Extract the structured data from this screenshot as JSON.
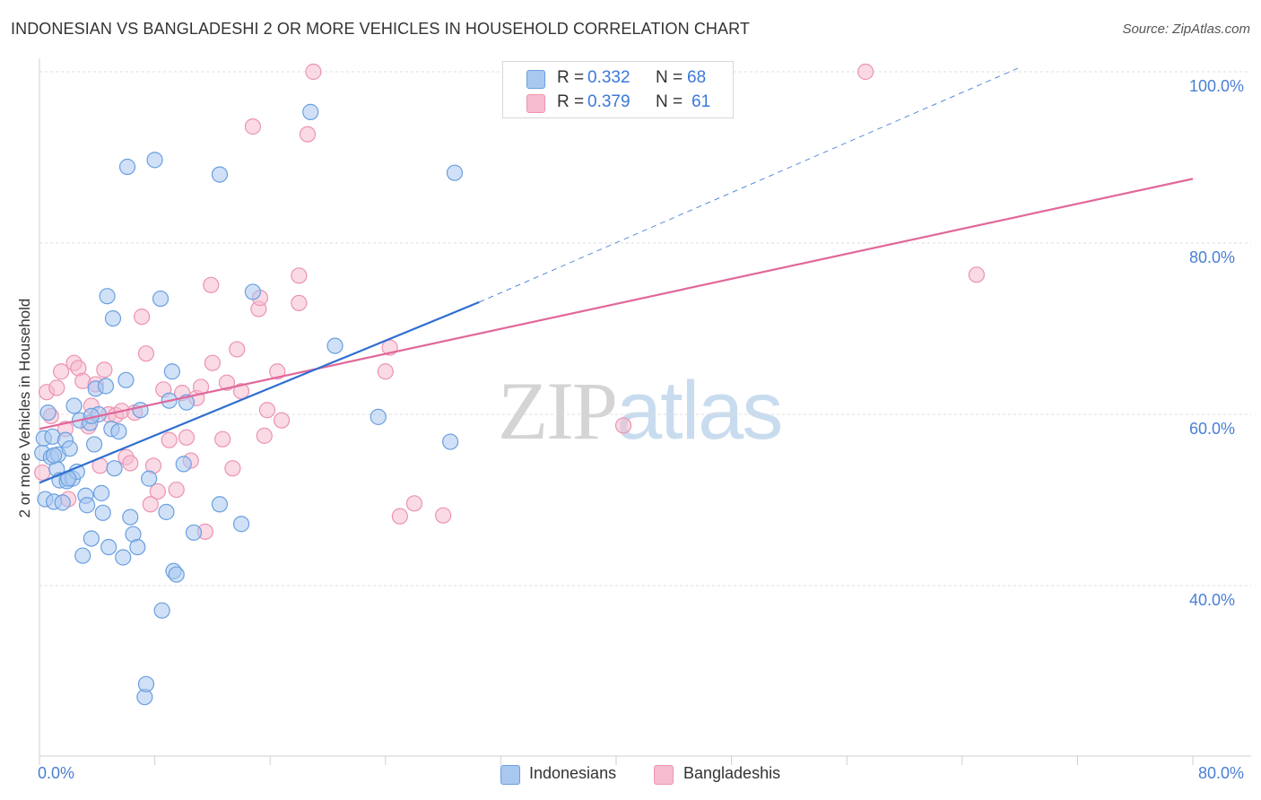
{
  "title": "INDONESIAN VS BANGLADESHI 2 OR MORE VEHICLES IN HOUSEHOLD CORRELATION CHART",
  "source": "Source: ZipAtlas.com",
  "watermark": {
    "zip": "ZIP",
    "atlas": "atlas"
  },
  "colors": {
    "blue_fill": "#a9c8f0",
    "blue_stroke": "#6a9fe0",
    "blue_line": "#2f6fd0",
    "pink_fill": "#f6bcd0",
    "pink_stroke": "#ec93b2",
    "pink_line": "#e0679a",
    "grid": "#dcdcdc",
    "axis_text": "#4a7fd4"
  },
  "legend_top": {
    "rows": [
      {
        "r_label": "R = ",
        "r_value": "0.332",
        "n_label": "N = ",
        "n_value": "68"
      },
      {
        "r_label": "R = ",
        "r_value": "0.379",
        "n_label": "N = ",
        "n_value": "61"
      }
    ]
  },
  "legend_bottom": [
    "Indonesians",
    "Bangladeshis"
  ],
  "chart_data": {
    "type": "scatter",
    "title": "INDONESIAN VS BANGLADESHI 2 OR MORE VEHICLES IN HOUSEHOLD CORRELATION CHART",
    "xlabel": "",
    "ylabel": "2 or more Vehicles in Household",
    "xlim": [
      0,
      80
    ],
    "ylim": [
      20,
      102
    ],
    "x_tick_labels": [
      "0.0%",
      "80.0%"
    ],
    "y_ticks": [
      40,
      60,
      80,
      100
    ],
    "y_tick_labels": [
      "40.0%",
      "60.0%",
      "80.0%",
      "100.0%"
    ],
    "grid": true,
    "series": [
      {
        "name": "Indonesians",
        "R": 0.332,
        "N": 68,
        "trend": {
          "x0": 0,
          "y0": 52.0,
          "x1": 30.5,
          "y1": 73.1,
          "dashed_to_x": 68,
          "dashed_to_y": 100.5
        },
        "points": [
          [
            0.2,
            55.5
          ],
          [
            0.3,
            57.2
          ],
          [
            0.4,
            50.1
          ],
          [
            0.6,
            60.2
          ],
          [
            0.8,
            55.0
          ],
          [
            0.9,
            57.4
          ],
          [
            1.0,
            49.8
          ],
          [
            1.2,
            53.6
          ],
          [
            1.3,
            55.3
          ],
          [
            1.4,
            52.3
          ],
          [
            1.6,
            49.7
          ],
          [
            1.8,
            57.0
          ],
          [
            1.9,
            52.2
          ],
          [
            2.1,
            56.0
          ],
          [
            2.3,
            52.5
          ],
          [
            2.4,
            61.0
          ],
          [
            2.6,
            53.3
          ],
          [
            2.8,
            59.3
          ],
          [
            3.0,
            43.5
          ],
          [
            3.2,
            50.5
          ],
          [
            3.3,
            49.4
          ],
          [
            3.5,
            59.0
          ],
          [
            3.6,
            45.5
          ],
          [
            3.8,
            56.5
          ],
          [
            3.9,
            63.0
          ],
          [
            4.1,
            60.0
          ],
          [
            4.3,
            50.8
          ],
          [
            4.4,
            48.5
          ],
          [
            4.6,
            63.3
          ],
          [
            4.8,
            44.5
          ],
          [
            5.0,
            58.3
          ],
          [
            5.2,
            53.7
          ],
          [
            5.5,
            58.0
          ],
          [
            5.8,
            43.3
          ],
          [
            6.0,
            64.0
          ],
          [
            6.3,
            48.0
          ],
          [
            6.5,
            46.0
          ],
          [
            6.8,
            44.5
          ],
          [
            7.0,
            60.5
          ],
          [
            7.3,
            27.0
          ],
          [
            7.4,
            28.5
          ],
          [
            7.6,
            52.5
          ],
          [
            8.0,
            89.7
          ],
          [
            8.4,
            73.5
          ],
          [
            8.5,
            37.1
          ],
          [
            8.8,
            48.6
          ],
          [
            9.0,
            61.6
          ],
          [
            9.2,
            65.0
          ],
          [
            9.3,
            41.7
          ],
          [
            9.5,
            41.3
          ],
          [
            10.0,
            54.2
          ],
          [
            10.2,
            61.4
          ],
          [
            10.7,
            46.2
          ],
          [
            12.5,
            88.0
          ],
          [
            12.5,
            49.5
          ],
          [
            14.0,
            47.2
          ],
          [
            14.8,
            74.3
          ],
          [
            18.8,
            95.3
          ],
          [
            20.5,
            68.0
          ],
          [
            23.5,
            59.7
          ],
          [
            28.5,
            56.8
          ],
          [
            28.8,
            88.2
          ],
          [
            6.1,
            88.9
          ],
          [
            4.7,
            73.8
          ],
          [
            5.1,
            71.2
          ],
          [
            3.6,
            59.8
          ],
          [
            2.0,
            52.5
          ],
          [
            1.0,
            55.2
          ]
        ]
      },
      {
        "name": "Bangladeshis",
        "R": 0.379,
        "N": 61,
        "trend": {
          "x0": 0,
          "y0": 58.3,
          "x1": 80,
          "y1": 87.5
        },
        "points": [
          [
            0.2,
            53.2
          ],
          [
            0.5,
            62.6
          ],
          [
            0.8,
            59.8
          ],
          [
            1.2,
            63.1
          ],
          [
            1.5,
            65.0
          ],
          [
            1.8,
            58.3
          ],
          [
            2.0,
            50.1
          ],
          [
            2.4,
            66.0
          ],
          [
            2.7,
            65.4
          ],
          [
            3.0,
            63.9
          ],
          [
            3.4,
            58.6
          ],
          [
            3.6,
            61.0
          ],
          [
            3.9,
            63.5
          ],
          [
            4.2,
            54.0
          ],
          [
            4.5,
            65.2
          ],
          [
            4.8,
            60.0
          ],
          [
            5.3,
            59.9
          ],
          [
            5.7,
            60.4
          ],
          [
            6.0,
            55.0
          ],
          [
            6.3,
            54.3
          ],
          [
            6.6,
            60.2
          ],
          [
            7.1,
            71.4
          ],
          [
            7.4,
            67.1
          ],
          [
            7.7,
            49.5
          ],
          [
            7.9,
            54.0
          ],
          [
            8.2,
            51.0
          ],
          [
            8.6,
            62.9
          ],
          [
            9.0,
            57.0
          ],
          [
            9.5,
            51.2
          ],
          [
            9.9,
            62.5
          ],
          [
            10.2,
            57.3
          ],
          [
            10.5,
            54.6
          ],
          [
            10.9,
            61.9
          ],
          [
            11.2,
            63.2
          ],
          [
            11.5,
            46.3
          ],
          [
            11.9,
            75.1
          ],
          [
            12.0,
            66.0
          ],
          [
            12.7,
            57.1
          ],
          [
            13.0,
            63.7
          ],
          [
            13.4,
            53.7
          ],
          [
            13.7,
            67.6
          ],
          [
            14.0,
            62.7
          ],
          [
            14.8,
            93.6
          ],
          [
            15.2,
            72.3
          ],
          [
            15.3,
            73.6
          ],
          [
            15.6,
            57.5
          ],
          [
            15.8,
            60.5
          ],
          [
            16.5,
            65.0
          ],
          [
            16.8,
            59.3
          ],
          [
            18.0,
            76.2
          ],
          [
            18.0,
            73.0
          ],
          [
            18.6,
            92.7
          ],
          [
            19.0,
            100.0
          ],
          [
            24.0,
            65.0
          ],
          [
            24.3,
            67.8
          ],
          [
            25.0,
            48.1
          ],
          [
            26.0,
            49.6
          ],
          [
            28.0,
            48.2
          ],
          [
            40.5,
            58.7
          ],
          [
            57.3,
            100.0
          ],
          [
            65.0,
            76.3
          ]
        ]
      }
    ]
  }
}
